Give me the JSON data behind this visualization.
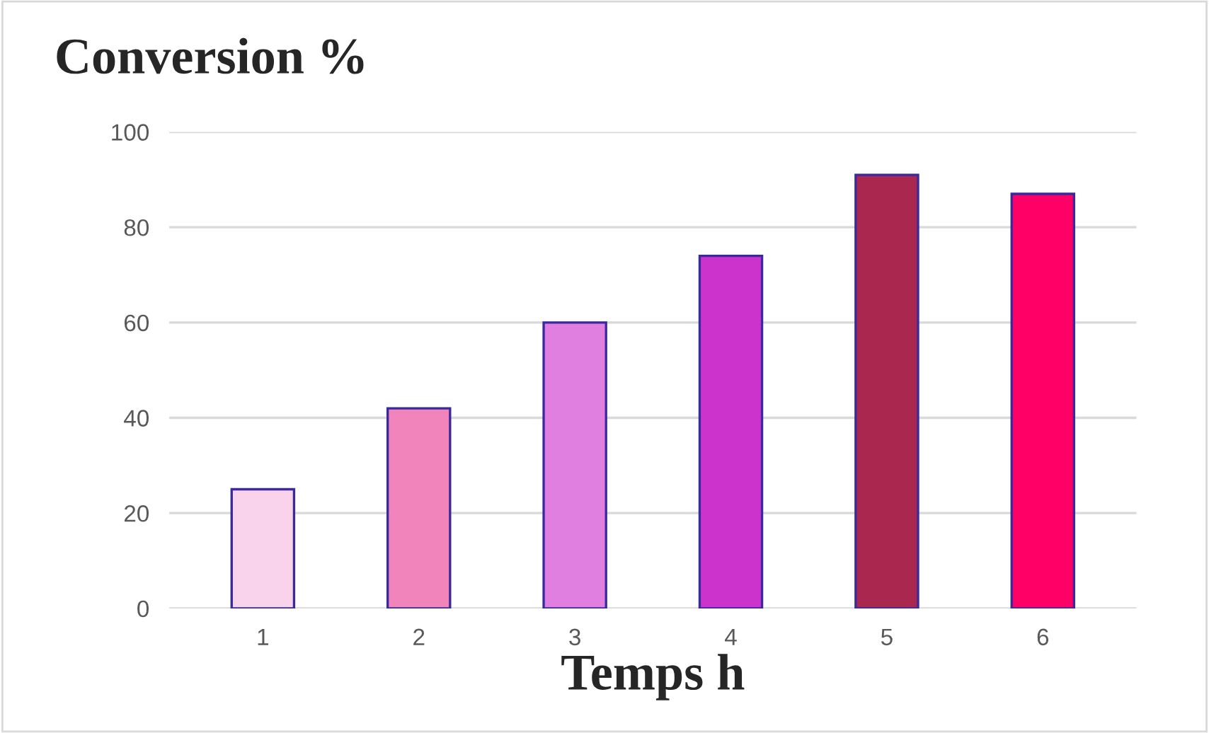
{
  "chart_data": {
    "type": "bar",
    "title": "Conversion %",
    "xlabel": "Temps h",
    "categories": [
      "1",
      "2",
      "3",
      "4",
      "5",
      "6"
    ],
    "values": [
      25,
      42,
      60,
      74,
      91,
      87
    ],
    "colors": [
      "#f9d3ec",
      "#f084bb",
      "#e07fe0",
      "#cc33cc",
      "#aa2850",
      "#ff0066"
    ],
    "ylim": [
      0,
      100
    ],
    "yticks": [
      0,
      20,
      40,
      60,
      80,
      100
    ],
    "grid": "y"
  }
}
